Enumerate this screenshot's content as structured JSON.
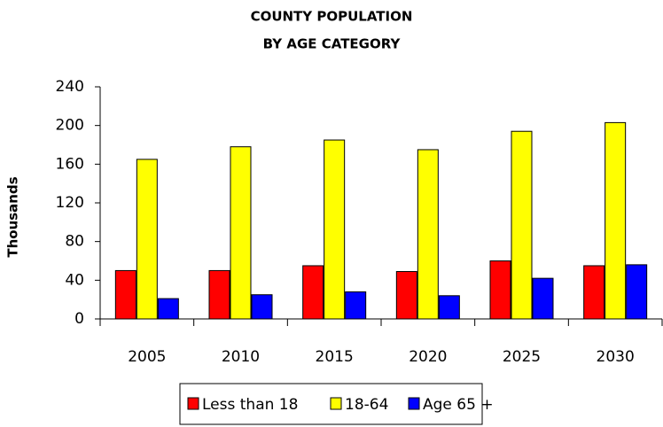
{
  "chart_data": {
    "type": "bar",
    "title": "COUNTY POPULATION",
    "subtitle": "BY AGE CATEGORY",
    "y_label": "Thousands",
    "categories": [
      "2005",
      "2010",
      "2015",
      "2020",
      "2025",
      "2030"
    ],
    "series": [
      {
        "name": "Less than 18",
        "color": "#ff0000",
        "values": [
          50,
          50,
          55,
          49,
          60,
          55
        ]
      },
      {
        "name": "18-64",
        "color": "#ffff00",
        "values": [
          165,
          178,
          185,
          175,
          194,
          203
        ]
      },
      {
        "name": "Age 65 +",
        "color": "#0000ff",
        "values": [
          21,
          25,
          28,
          24,
          42,
          56
        ]
      }
    ],
    "ylim": [
      0,
      240
    ],
    "yticks": [
      0,
      40,
      80,
      120,
      160,
      200,
      240
    ],
    "grid": false,
    "legend": "bottom"
  }
}
